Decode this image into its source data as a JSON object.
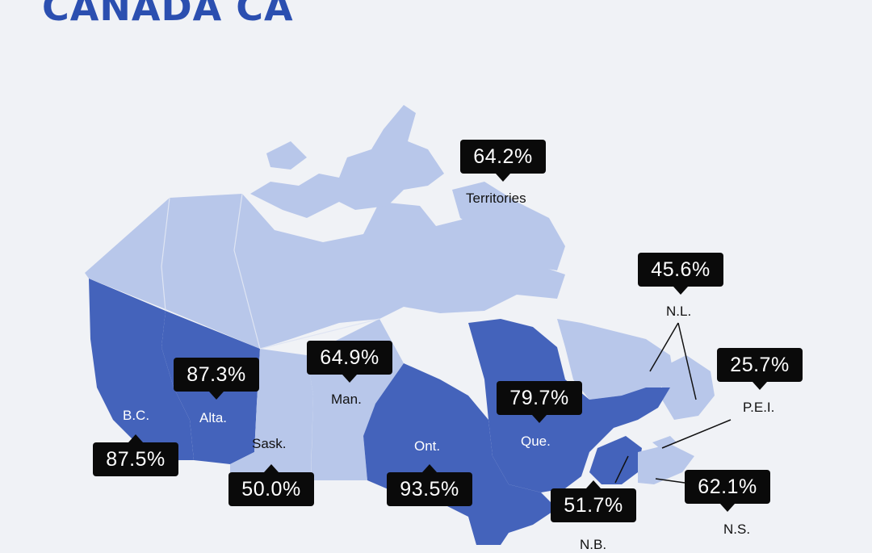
{
  "title": "CANADA CA",
  "colors": {
    "background": "#f0f2f6",
    "region_high": "#4463bb",
    "region_low": "#b8c7ea",
    "callout": "#0a0a0a",
    "title": "#2b4fb0"
  },
  "regions": [
    {
      "id": "territories",
      "label": "Territories",
      "value": "64.2%"
    },
    {
      "id": "nl",
      "label": "N.L.",
      "value": "45.6%"
    },
    {
      "id": "pei",
      "label": "P.E.I.",
      "value": "25.7%"
    },
    {
      "id": "bc",
      "label": "B.C.",
      "value": "87.5%"
    },
    {
      "id": "alta",
      "label": "Alta.",
      "value": "87.3%"
    },
    {
      "id": "sask",
      "label": "Sask.",
      "value": "50.0%"
    },
    {
      "id": "man",
      "label": "Man.",
      "value": "64.9%"
    },
    {
      "id": "ont",
      "label": "Ont.",
      "value": "93.5%"
    },
    {
      "id": "que",
      "label": "Que.",
      "value": "79.7%"
    },
    {
      "id": "nb",
      "label": "N.B.",
      "value": "51.7%"
    },
    {
      "id": "ns",
      "label": "N.S.",
      "value": "62.1%"
    }
  ]
}
